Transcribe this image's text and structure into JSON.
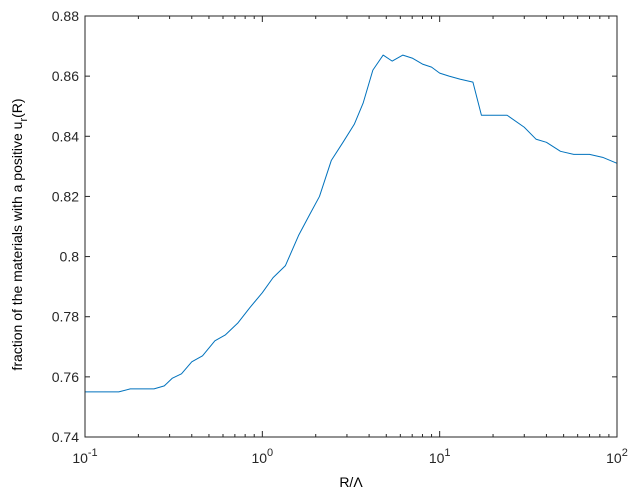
{
  "chart_data": {
    "type": "line",
    "title": "",
    "xlabel": "R/Λ",
    "ylabel": "fraction of the materials with a positive u",
    "ylabel_subscript": "r",
    "ylabel_suffix": "(R)",
    "x_scale": "log",
    "xlim": [
      0.1,
      100
    ],
    "ylim": [
      0.74,
      0.88
    ],
    "grid": false,
    "legend": "none",
    "line_color": "#0072BD",
    "x_ticks": [
      {
        "value": 0.1,
        "base": "10",
        "exp": "-1"
      },
      {
        "value": 1,
        "base": "10",
        "exp": "0"
      },
      {
        "value": 10,
        "base": "10",
        "exp": "1"
      },
      {
        "value": 100,
        "base": "10",
        "exp": "2"
      }
    ],
    "y_ticks": [
      {
        "value": 0.74,
        "label": "0.74"
      },
      {
        "value": 0.76,
        "label": "0.76"
      },
      {
        "value": 0.78,
        "label": "0.78"
      },
      {
        "value": 0.8,
        "label": "0.8"
      },
      {
        "value": 0.82,
        "label": "0.82"
      },
      {
        "value": 0.84,
        "label": "0.84"
      },
      {
        "value": 0.86,
        "label": "0.86"
      },
      {
        "value": 0.88,
        "label": "0.88"
      }
    ],
    "series": [
      {
        "x": [
          0.1,
          0.13,
          0.155,
          0.18,
          0.21,
          0.245,
          0.28,
          0.31,
          0.35,
          0.4,
          0.46,
          0.54,
          0.62,
          0.73,
          0.85,
          1.0,
          1.15,
          1.35,
          1.6,
          1.85,
          2.1,
          2.45,
          2.85,
          3.3,
          3.7,
          4.2,
          4.8,
          5.4,
          6.2,
          7.0,
          8.0,
          9.0,
          10.0,
          11.3,
          13.0,
          15.4,
          17.2,
          19.5,
          24.0,
          30.0,
          35.0,
          40.0,
          48.0,
          57.0,
          70.0,
          83.0,
          100.0
        ],
        "values": [
          0.755,
          0.755,
          0.755,
          0.756,
          0.756,
          0.756,
          0.757,
          0.7595,
          0.761,
          0.765,
          0.767,
          0.772,
          0.774,
          0.778,
          0.783,
          0.788,
          0.793,
          0.797,
          0.807,
          0.814,
          0.82,
          0.832,
          0.838,
          0.844,
          0.851,
          0.862,
          0.867,
          0.865,
          0.867,
          0.866,
          0.864,
          0.863,
          0.861,
          0.86,
          0.859,
          0.858,
          0.847,
          0.847,
          0.847,
          0.843,
          0.839,
          0.838,
          0.835,
          0.834,
          0.834,
          0.833,
          0.831
        ]
      }
    ]
  }
}
